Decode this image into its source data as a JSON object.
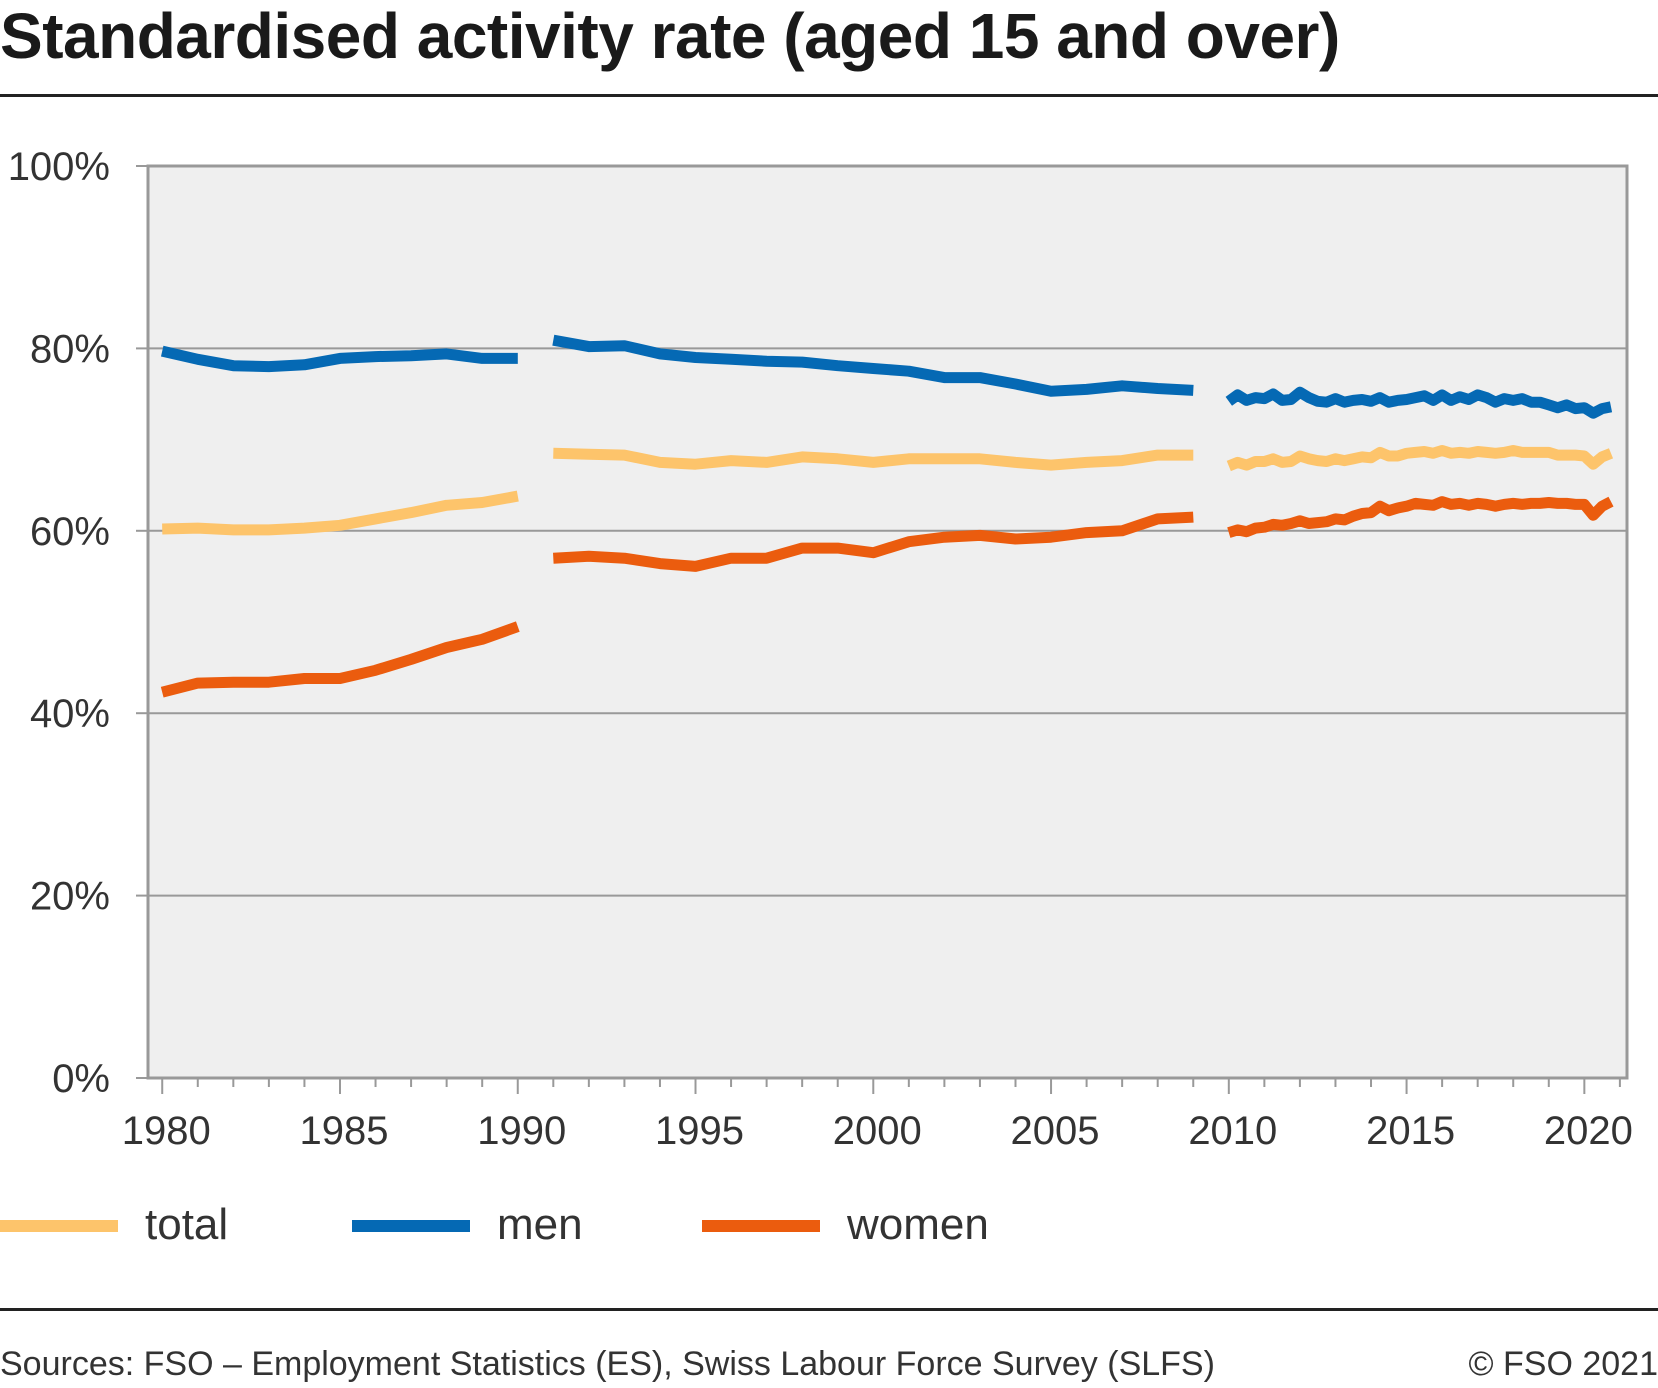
{
  "chart_data": {
    "type": "line",
    "title": "Standardised activity rate (aged 15 and over)",
    "xlabel": "",
    "ylabel": "",
    "xlim": [
      1979.6,
      2021.2
    ],
    "ylim": [
      0,
      100
    ],
    "y_ticks": [
      "0%",
      "20%",
      "40%",
      "60%",
      "80%",
      "100%"
    ],
    "y_tick_values": [
      0,
      20,
      40,
      60,
      80,
      100
    ],
    "x_ticks": [
      "1980",
      "1985",
      "1990",
      "1995",
      "2000",
      "2005",
      "2010",
      "2015",
      "2020"
    ],
    "x_tick_values": [
      1980,
      1985,
      1990,
      1995,
      2000,
      2005,
      2010,
      2015,
      2020
    ],
    "grid": true,
    "legend_position": "bottom",
    "series": [
      {
        "name": "total",
        "color": "#FDC46B",
        "segments": [
          {
            "x": [
              1980,
              1981,
              1982,
              1983,
              1984,
              1985,
              1986,
              1987,
              1988,
              1989,
              1990
            ],
            "y": [
              60.2,
              60.3,
              60.1,
              60.1,
              60.3,
              60.6,
              61.3,
              62.0,
              62.8,
              63.1,
              63.8
            ]
          },
          {
            "x": [
              1991,
              1992,
              1993,
              1994,
              1995,
              1996,
              1997,
              1998,
              1999,
              2000,
              2001,
              2002,
              2003,
              2004,
              2005,
              2006,
              2007,
              2008,
              2009
            ],
            "y": [
              68.5,
              68.4,
              68.3,
              67.5,
              67.3,
              67.7,
              67.5,
              68.1,
              67.9,
              67.5,
              67.9,
              67.9,
              67.9,
              67.5,
              67.2,
              67.5,
              67.7,
              68.3,
              68.3
            ]
          },
          {
            "x": [
              2010,
              2010.25,
              2010.5,
              2010.75,
              2011,
              2011.25,
              2011.5,
              2011.75,
              2012,
              2012.25,
              2012.5,
              2012.75,
              2013,
              2013.25,
              2013.5,
              2013.75,
              2014,
              2014.25,
              2014.5,
              2014.75,
              2015,
              2015.25,
              2015.5,
              2015.75,
              2016,
              2016.25,
              2016.5,
              2016.75,
              2017,
              2017.25,
              2017.5,
              2017.75,
              2018,
              2018.25,
              2018.5,
              2018.75,
              2019,
              2019.25,
              2019.5,
              2019.75,
              2020,
              2020.25,
              2020.5,
              2020.75
            ],
            "y": [
              67.1,
              67.5,
              67.2,
              67.6,
              67.6,
              67.9,
              67.5,
              67.6,
              68.2,
              67.9,
              67.7,
              67.6,
              67.9,
              67.7,
              67.9,
              68.1,
              68.0,
              68.6,
              68.2,
              68.2,
              68.5,
              68.6,
              68.7,
              68.5,
              68.8,
              68.5,
              68.6,
              68.5,
              68.7,
              68.6,
              68.5,
              68.6,
              68.8,
              68.6,
              68.6,
              68.6,
              68.6,
              68.3,
              68.3,
              68.3,
              68.2,
              67.3,
              68.1,
              68.5
            ]
          }
        ]
      },
      {
        "name": "men",
        "color": "#0569B4",
        "segments": [
          {
            "x": [
              1980,
              1981,
              1982,
              1983,
              1984,
              1985,
              1986,
              1987,
              1988,
              1989,
              1990
            ],
            "y": [
              79.7,
              78.8,
              78.1,
              78.0,
              78.2,
              78.9,
              79.1,
              79.2,
              79.4,
              78.9,
              78.9
            ]
          },
          {
            "x": [
              1991,
              1992,
              1993,
              1994,
              1995,
              1996,
              1997,
              1998,
              1999,
              2000,
              2001,
              2002,
              2003,
              2004,
              2005,
              2006,
              2007,
              2008,
              2009
            ],
            "y": [
              80.9,
              80.2,
              80.3,
              79.4,
              79.0,
              78.8,
              78.6,
              78.5,
              78.1,
              77.8,
              77.5,
              76.8,
              76.8,
              76.1,
              75.3,
              75.5,
              75.9,
              75.6,
              75.4
            ]
          },
          {
            "x": [
              2010,
              2010.25,
              2010.5,
              2010.75,
              2011,
              2011.25,
              2011.5,
              2011.75,
              2012,
              2012.25,
              2012.5,
              2012.75,
              2013,
              2013.25,
              2013.5,
              2013.75,
              2014,
              2014.25,
              2014.5,
              2014.75,
              2015,
              2015.25,
              2015.5,
              2015.75,
              2016,
              2016.25,
              2016.5,
              2016.75,
              2017,
              2017.25,
              2017.5,
              2017.75,
              2018,
              2018.25,
              2018.5,
              2018.75,
              2019,
              2019.25,
              2019.5,
              2019.75,
              2020,
              2020.25,
              2020.5,
              2020.75
            ],
            "y": [
              74.2,
              74.9,
              74.3,
              74.6,
              74.5,
              75.0,
              74.3,
              74.4,
              75.2,
              74.6,
              74.2,
              74.1,
              74.5,
              74.1,
              74.3,
              74.4,
              74.2,
              74.6,
              74.1,
              74.3,
              74.4,
              74.6,
              74.8,
              74.3,
              74.9,
              74.3,
              74.7,
              74.4,
              74.9,
              74.6,
              74.1,
              74.5,
              74.3,
              74.5,
              74.1,
              74.1,
              73.8,
              73.5,
              73.8,
              73.4,
              73.5,
              72.9,
              73.4,
              73.6
            ]
          }
        ]
      },
      {
        "name": "women",
        "color": "#EB5C0E",
        "segments": [
          {
            "x": [
              1980,
              1981,
              1982,
              1983,
              1984,
              1985,
              1986,
              1987,
              1988,
              1989,
              1990
            ],
            "y": [
              42.3,
              43.3,
              43.4,
              43.4,
              43.8,
              43.8,
              44.7,
              45.9,
              47.2,
              48.1,
              49.5
            ]
          },
          {
            "x": [
              1991,
              1992,
              1993,
              1994,
              1995,
              1996,
              1997,
              1998,
              1999,
              2000,
              2001,
              2002,
              2003,
              2004,
              2005,
              2006,
              2007,
              2008,
              2009
            ],
            "y": [
              57.0,
              57.2,
              57.0,
              56.4,
              56.1,
              57.0,
              57.0,
              58.1,
              58.1,
              57.6,
              58.8,
              59.3,
              59.5,
              59.1,
              59.3,
              59.8,
              60.0,
              61.3,
              61.5
            ]
          },
          {
            "x": [
              2010,
              2010.25,
              2010.5,
              2010.75,
              2011,
              2011.25,
              2011.5,
              2011.75,
              2012,
              2012.25,
              2012.5,
              2012.75,
              2013,
              2013.25,
              2013.5,
              2013.75,
              2014,
              2014.25,
              2014.5,
              2014.75,
              2015,
              2015.25,
              2015.5,
              2015.75,
              2016,
              2016.25,
              2016.5,
              2016.75,
              2017,
              2017.25,
              2017.5,
              2017.75,
              2018,
              2018.25,
              2018.5,
              2018.75,
              2019,
              2019.25,
              2019.5,
              2019.75,
              2020,
              2020.25,
              2020.5,
              2020.75
            ],
            "y": [
              59.8,
              60.1,
              59.9,
              60.3,
              60.4,
              60.7,
              60.6,
              60.8,
              61.1,
              60.8,
              60.9,
              61.0,
              61.3,
              61.2,
              61.6,
              61.9,
              62.0,
              62.7,
              62.2,
              62.5,
              62.7,
              63.0,
              62.9,
              62.8,
              63.2,
              62.9,
              63.0,
              62.8,
              63.0,
              62.9,
              62.7,
              62.9,
              63.0,
              62.9,
              63.0,
              63.0,
              63.1,
              63.0,
              63.0,
              62.9,
              62.9,
              61.7,
              62.7,
              63.2
            ]
          }
        ]
      }
    ]
  },
  "legend": {
    "items": [
      {
        "label": "total",
        "color": "#FDC46B"
      },
      {
        "label": "men",
        "color": "#0569B4"
      },
      {
        "label": "women",
        "color": "#EB5C0E"
      }
    ]
  },
  "footer": {
    "source": "Sources: FSO – Employment Statistics (ES), Swiss Labour Force Survey (SLFS)",
    "copyright": "© FSO 2021"
  },
  "colors": {
    "plot_background": "#EFEFEF",
    "gridline": "#999999",
    "axis": "#999999"
  }
}
